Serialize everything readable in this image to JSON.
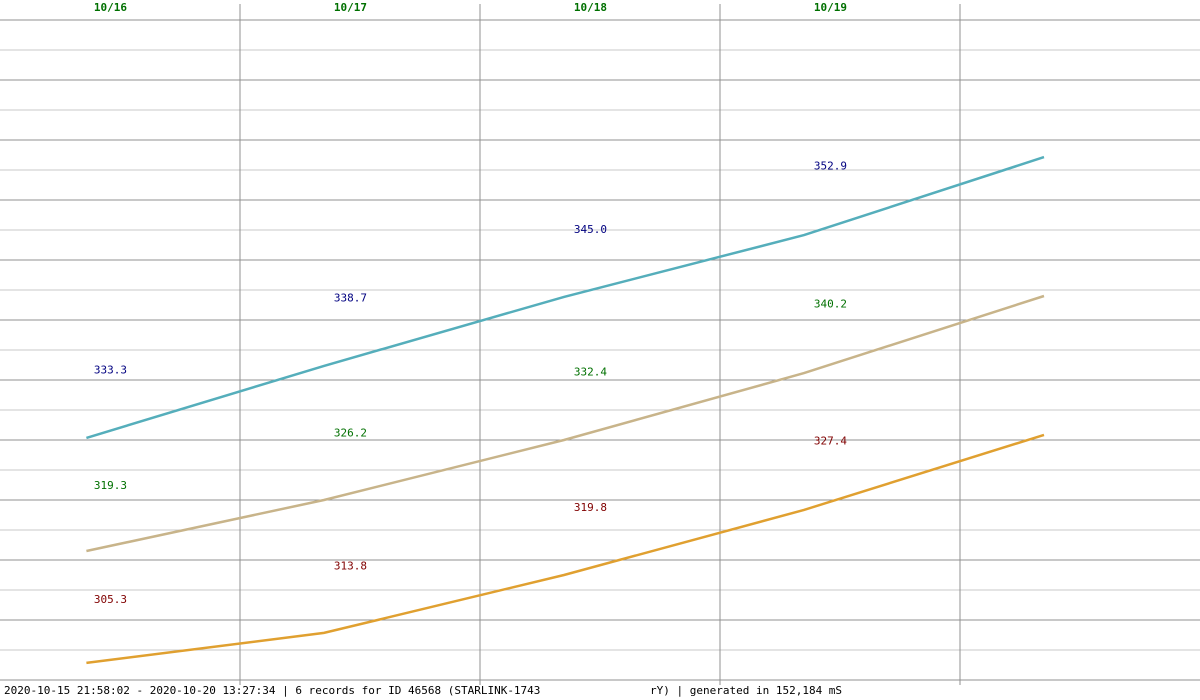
{
  "chart_data": {
    "type": "line",
    "categories": [
      "10/16",
      "10/17",
      "10/18",
      "10/19"
    ],
    "xlim": [
      16,
      21
    ],
    "xticks": [
      17,
      18,
      19,
      20
    ],
    "ylim": [
      0,
      22
    ],
    "yticks": [
      0,
      1,
      2,
      3,
      4,
      5,
      6,
      7,
      8,
      9,
      10,
      11,
      12,
      13,
      14,
      15,
      16,
      17,
      18,
      19,
      20,
      21,
      22
    ],
    "grid": true,
    "x": [
      16.36,
      17.35,
      18.35,
      19.35,
      20.35
    ],
    "series": [
      {
        "color": "#55aebb",
        "label_color": "#000080",
        "values": [
          8.07,
          10.47,
          12.77,
          14.83,
          17.43
        ],
        "daily_labels": [
          "333.3",
          "338.7",
          "345.0",
          "352.9"
        ]
      },
      {
        "color": "#c8b48a",
        "label_color": "#007000",
        "values": [
          4.3,
          6.0,
          8.0,
          10.23,
          12.8
        ],
        "daily_labels": [
          "319.3",
          "326.2",
          "332.4",
          "340.2"
        ]
      },
      {
        "color": "#e0a030",
        "label_color": "#800000",
        "values": [
          0.57,
          1.57,
          3.5,
          5.67,
          8.17
        ],
        "daily_labels": [
          "305.3",
          "313.8",
          "319.8",
          "327.4"
        ]
      }
    ],
    "footer_left": "2020-10-15 21:58:02 - 2020-10-20 13:27:34 | 6 records for ID 46568 (STARLINK-1743",
    "footer_right": "rY) | generated in 152,184 mS"
  }
}
